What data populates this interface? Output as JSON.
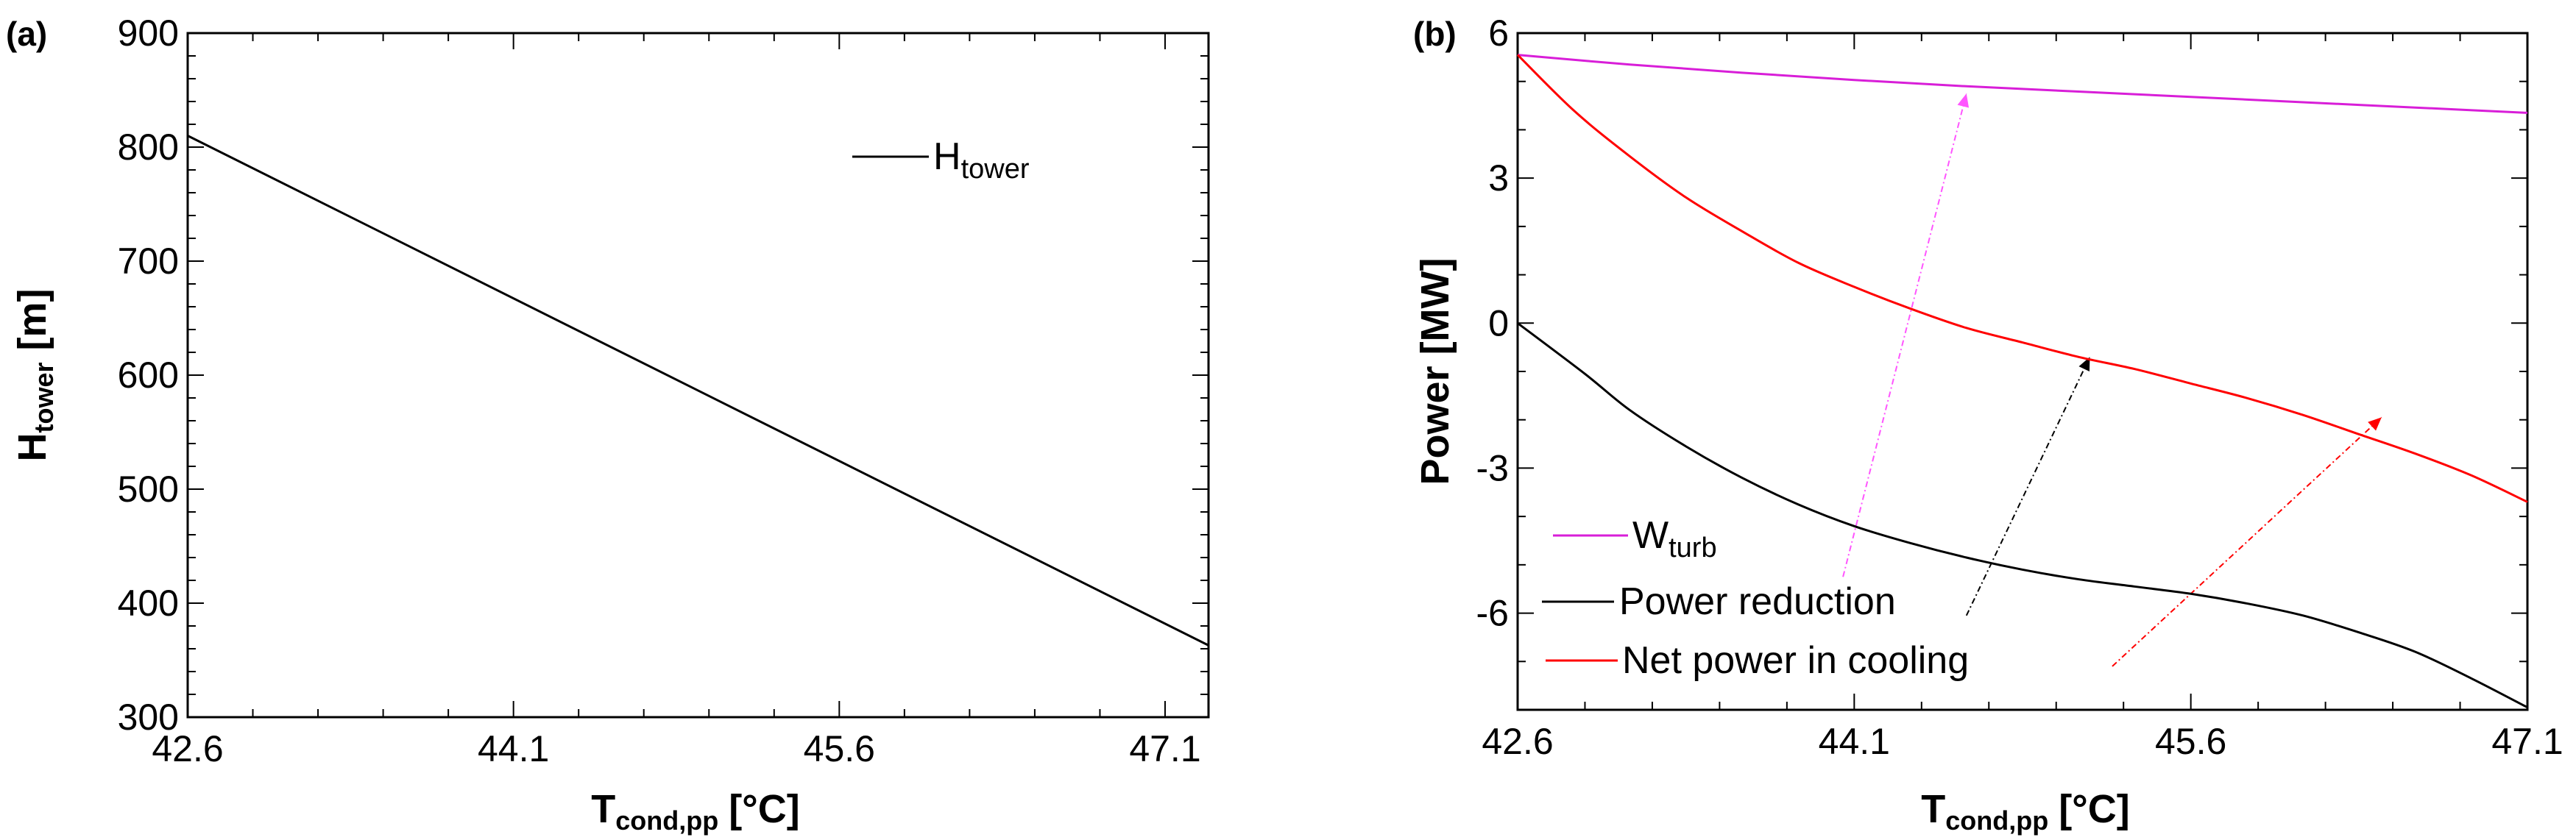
{
  "chart_data": [
    {
      "panel": "(a)",
      "type": "line",
      "xlabel": "T",
      "xlabel_sub": "cond,pp",
      "xlabel_unit": "[°C]",
      "ylabel": "H",
      "ylabel_sub": "tower",
      "ylabel_unit": "[m]",
      "xlim": [
        42.6,
        47.3
      ],
      "ylim": [
        300,
        900
      ],
      "x_ticks": [
        42.6,
        44.1,
        45.6,
        47.1
      ],
      "x_tick_labels": [
        "42.6",
        "44.1",
        "45.6",
        "47.1"
      ],
      "y_ticks": [
        300,
        400,
        500,
        600,
        700,
        800,
        900
      ],
      "y_tick_labels": [
        "300",
        "400",
        "500",
        "600",
        "700",
        "800",
        "900"
      ],
      "legend": [
        {
          "name": "H",
          "sub": "tower",
          "color": "#000000"
        }
      ],
      "series": [
        {
          "name": "H_tower",
          "color": "#000000",
          "x": [
            42.6,
            47.3
          ],
          "y": [
            810,
            363
          ]
        }
      ]
    },
    {
      "panel": "(b)",
      "type": "line",
      "xlabel": "T",
      "xlabel_sub": "cond,pp",
      "xlabel_unit": "[°C]",
      "ylabel": "Power [MW]",
      "xlim": [
        42.6,
        47.1
      ],
      "ylim": [
        -8,
        6
      ],
      "x_ticks": [
        42.6,
        44.1,
        45.6,
        47.1
      ],
      "x_tick_labels": [
        "42.6",
        "44.1",
        "45.6",
        "47.1"
      ],
      "y_ticks": [
        -6,
        -3,
        0,
        3,
        6
      ],
      "y_tick_labels": [
        "-6",
        "-3",
        "0",
        "3",
        "6"
      ],
      "legend": [
        {
          "name": "W",
          "sub": "turb",
          "color": "#d81ed8"
        },
        {
          "name": "Power reduction",
          "sub": "",
          "color": "#000000"
        },
        {
          "name": "Net power in cooling",
          "sub": "",
          "color": "#ff0000"
        }
      ],
      "series": [
        {
          "name": "W_turb",
          "color": "#d81ed8",
          "x": [
            42.6,
            43.1,
            43.6,
            44.1,
            44.6,
            45.1,
            45.6,
            46.1,
            46.6,
            47.1
          ],
          "y": [
            5.55,
            5.35,
            5.18,
            5.03,
            4.9,
            4.79,
            4.68,
            4.57,
            4.46,
            4.35
          ]
        },
        {
          "name": "Power reduction",
          "color": "#000000",
          "x": [
            42.6,
            42.9,
            43.1,
            43.35,
            43.6,
            43.85,
            44.1,
            44.35,
            44.6,
            44.85,
            45.1,
            45.35,
            45.6,
            45.85,
            46.1,
            46.35,
            46.6,
            46.85,
            47.1
          ],
          "y": [
            0.0,
            -1.05,
            -1.8,
            -2.55,
            -3.2,
            -3.75,
            -4.2,
            -4.55,
            -4.85,
            -5.1,
            -5.3,
            -5.45,
            -5.6,
            -5.8,
            -6.05,
            -6.4,
            -6.8,
            -7.35,
            -7.95
          ]
        },
        {
          "name": "Net power in cooling",
          "color": "#ff0000",
          "x": [
            42.6,
            42.85,
            43.1,
            43.35,
            43.6,
            43.85,
            44.1,
            44.35,
            44.6,
            44.85,
            45.1,
            45.35,
            45.6,
            45.85,
            46.1,
            46.35,
            46.6,
            46.85,
            47.1
          ],
          "y": [
            5.55,
            4.4,
            3.45,
            2.6,
            1.9,
            1.25,
            0.75,
            0.3,
            -0.1,
            -0.4,
            -0.7,
            -0.95,
            -1.25,
            -1.55,
            -1.9,
            -2.3,
            -2.7,
            -3.15,
            -3.7
          ]
        }
      ],
      "arrows": [
        {
          "color": "#ff55ff",
          "from": [
            44.05,
            -5.25
          ],
          "to": [
            44.6,
            4.75
          ]
        },
        {
          "color": "#000000",
          "from": [
            44.6,
            -6.05
          ],
          "to": [
            45.15,
            -0.7
          ]
        },
        {
          "color": "#ff0000",
          "from": [
            45.25,
            -7.1
          ],
          "to": [
            46.45,
            -1.95
          ]
        }
      ]
    }
  ]
}
